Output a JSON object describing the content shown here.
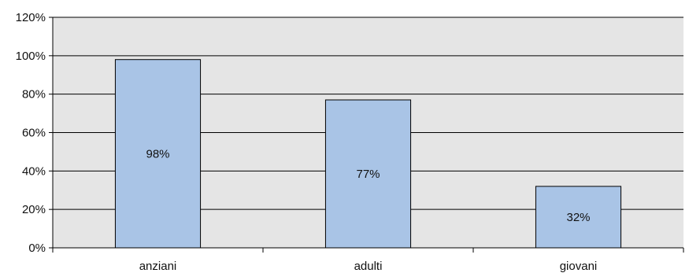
{
  "chart_data": {
    "type": "bar",
    "categories": [
      "anziani",
      "adulti",
      "giovani"
    ],
    "values": [
      98,
      77,
      32
    ],
    "data_labels": [
      "98%",
      "77%",
      "32%"
    ],
    "ylim": [
      0,
      120
    ],
    "y_ticks": [
      0,
      20,
      40,
      60,
      80,
      100,
      120
    ],
    "y_tick_format": "%",
    "grid": true,
    "legend": "none",
    "colors": {
      "bar_fill": "#a9c4e6",
      "bar_stroke": "#000000",
      "plot_background": "#e5e5e5",
      "grid": "#000000"
    }
  }
}
